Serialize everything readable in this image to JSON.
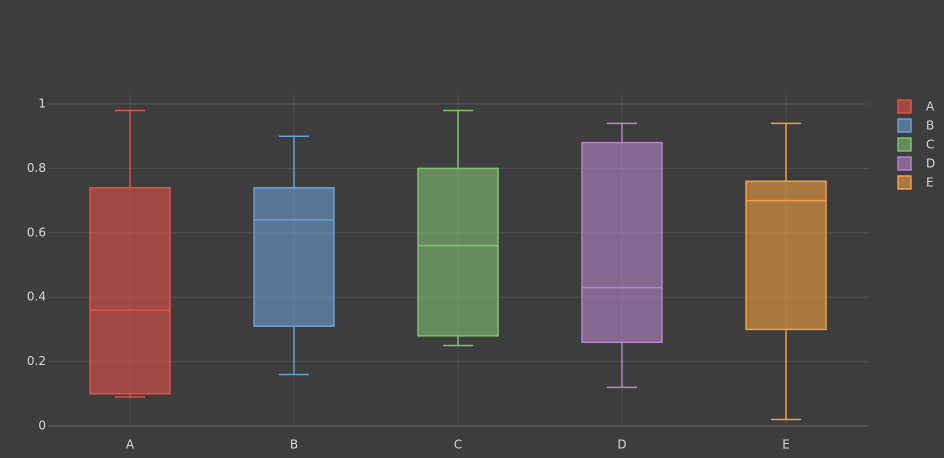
{
  "chart_data": {
    "type": "box",
    "categories": [
      "A",
      "B",
      "C",
      "D",
      "E"
    ],
    "series": [
      {
        "name": "A",
        "color": "#e0524a",
        "min": 0.09,
        "q1": 0.1,
        "median": 0.36,
        "q3": 0.74,
        "max": 0.98
      },
      {
        "name": "B",
        "color": "#6a9fd4",
        "min": 0.16,
        "q1": 0.31,
        "median": 0.64,
        "q3": 0.74,
        "max": 0.9
      },
      {
        "name": "C",
        "color": "#82c170",
        "min": 0.25,
        "q1": 0.28,
        "median": 0.56,
        "q3": 0.8,
        "max": 0.98
      },
      {
        "name": "D",
        "color": "#b784c8",
        "min": 0.12,
        "q1": 0.26,
        "median": 0.43,
        "q3": 0.88,
        "max": 0.94
      },
      {
        "name": "E",
        "color": "#f2a043",
        "min": 0.02,
        "q1": 0.3,
        "median": 0.7,
        "q3": 0.76,
        "max": 0.94
      }
    ],
    "ylim": [
      0,
      1
    ],
    "yticks": [
      0,
      0.2,
      0.4,
      0.6,
      0.8,
      1
    ],
    "grid": true,
    "legend": "top-right"
  }
}
